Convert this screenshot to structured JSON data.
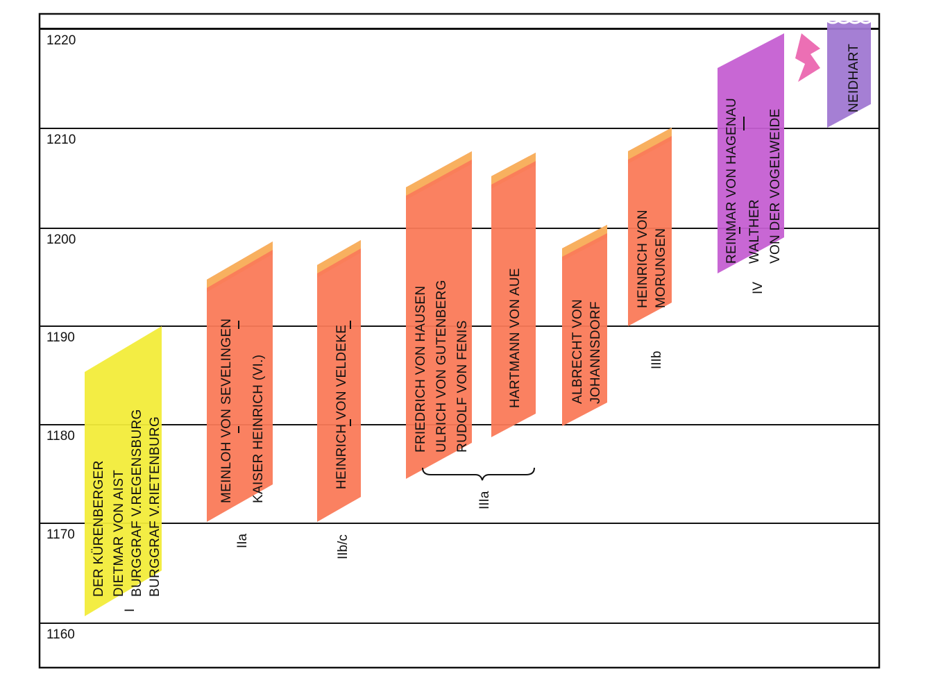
{
  "chart_data": {
    "type": "diagram",
    "years": [
      "1220",
      "1210",
      "1200",
      "1190",
      "1180",
      "1170",
      "1160"
    ],
    "colors": {
      "yellow": "#f2ec3a",
      "salmon": "#fa7a58",
      "orange_top": "#f7b860",
      "purple": "#c55fd2",
      "violet": "#a078d2",
      "bolt": "#ec6fb4"
    },
    "blocks": [
      {
        "label_lines": [
          "DER KÜRENBERGER",
          "DIETMAR VON AIST",
          "BURGGRAF V.REGENSBURG",
          "BURGGRAF V.RIETENBURG"
        ],
        "group": "I",
        "color": "yellow"
      },
      {
        "label_lines": [
          "MEINLOH VON SEVELINGEN",
          "KAISER HEINRICH (VI.)"
        ],
        "group": "IIa",
        "color": "salmon"
      },
      {
        "label_lines": [
          "HEINRICH VON VELDEKE"
        ],
        "group": "IIb/c",
        "color": "salmon"
      },
      {
        "label_lines": [
          "FRIEDRICH VON HAUSEN",
          "ULRICH VON GUTENBERG",
          "RUDOLF VON FENIS"
        ],
        "group": "IIIa",
        "color": "salmon"
      },
      {
        "label_lines": [
          "HARTMANN VON AUE"
        ],
        "group": "IIIa",
        "color": "salmon"
      },
      {
        "label_lines": [
          "ALBRECHT VON",
          "JOHANNSDORF"
        ],
        "group": "",
        "color": "salmon"
      },
      {
        "label_lines": [
          "HEINRICH VON",
          "MORUNGEN"
        ],
        "group": "IIIb",
        "color": "salmon"
      },
      {
        "label_lines": [
          "REINMAR VON HAGENAU",
          "WALTHER",
          "VON DER VOGELWEIDE"
        ],
        "group": "IV",
        "color": "purple"
      },
      {
        "label_lines": [
          "NEIDHART"
        ],
        "group": "",
        "color": "violet"
      }
    ],
    "group_labels": [
      "I",
      "IIa",
      "IIb/c",
      "IIIa",
      "IIIb",
      "IV"
    ]
  }
}
